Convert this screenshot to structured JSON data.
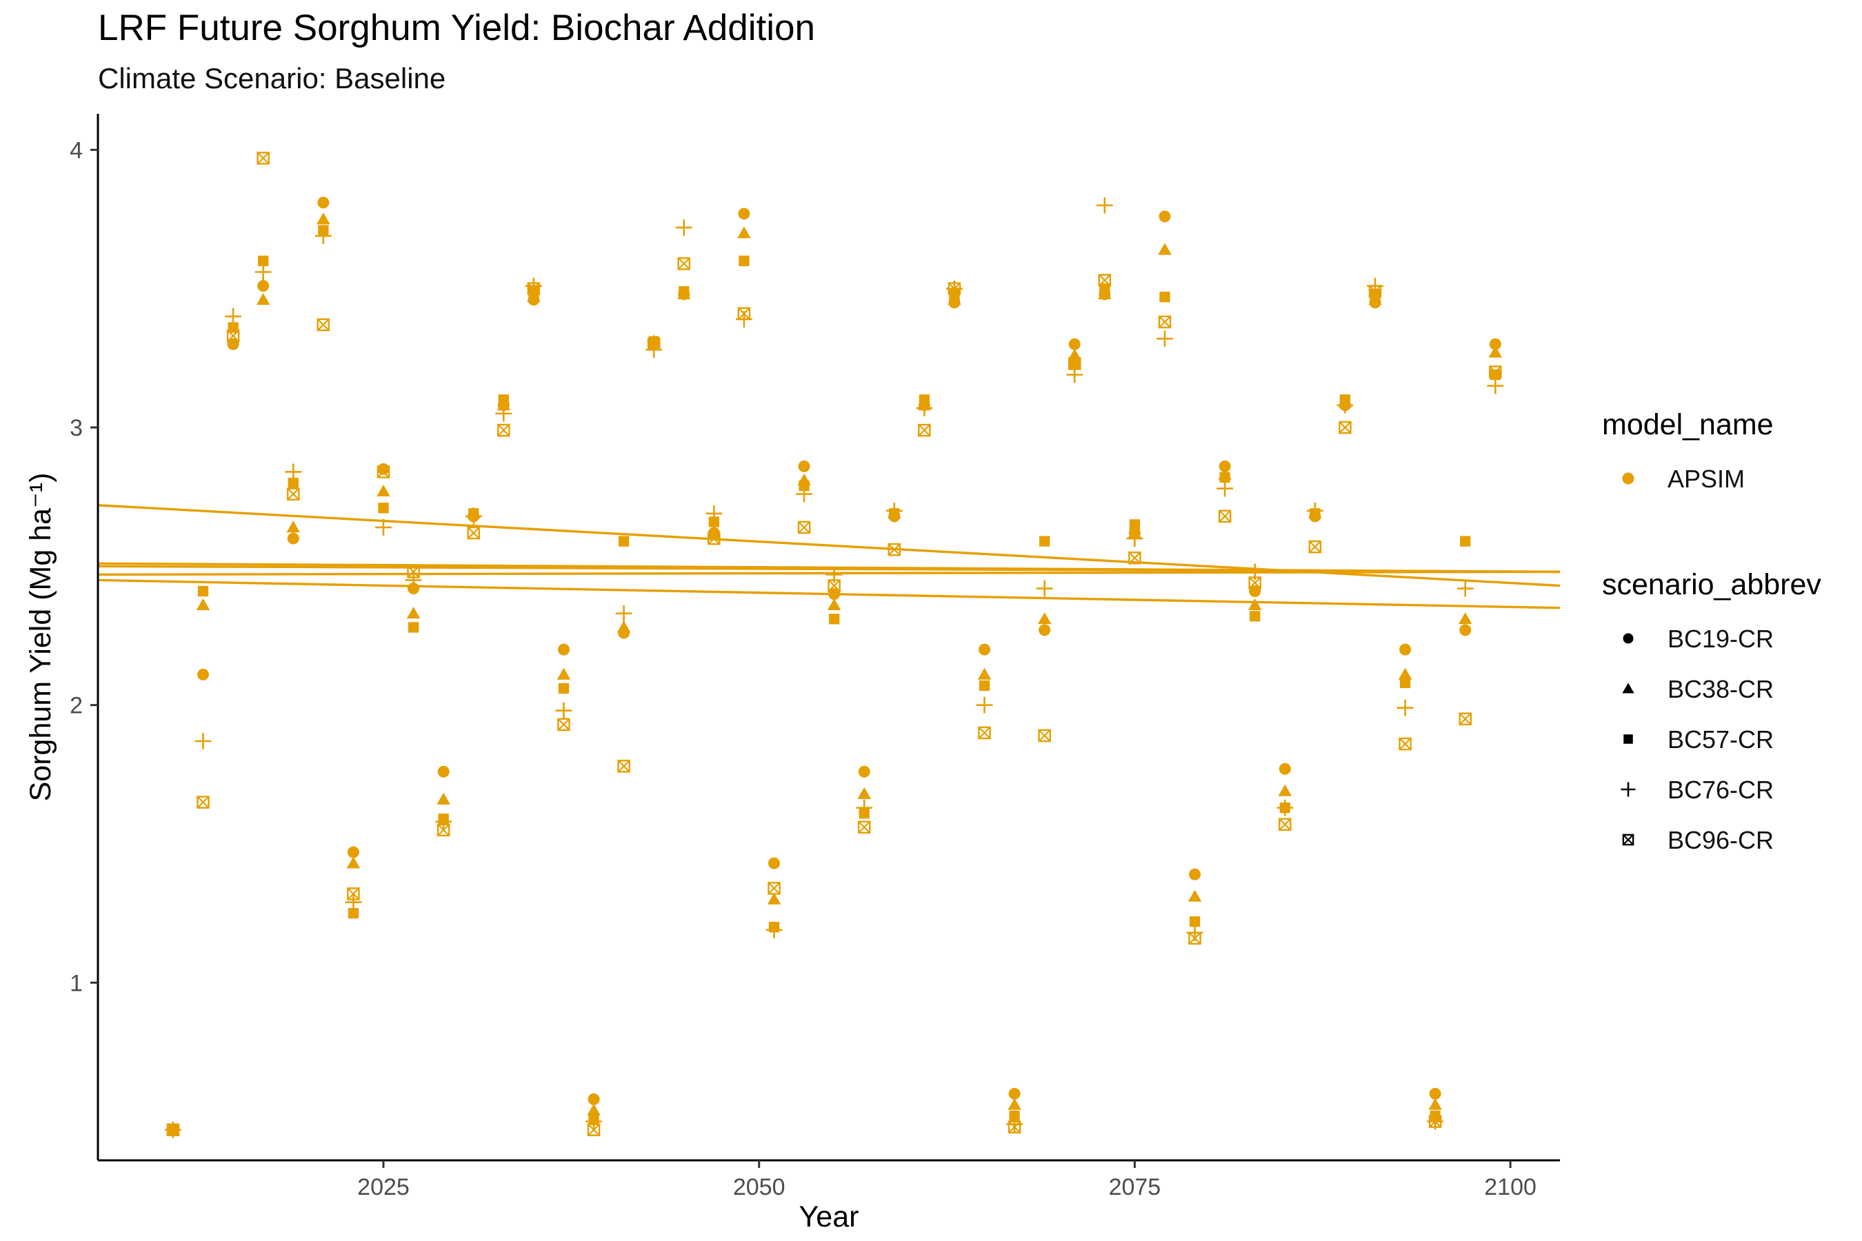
{
  "chart_data": {
    "type": "scatter",
    "title": "LRF Future Sorghum Yield: Biochar Addition",
    "subtitle": "Climate Scenario: Baseline",
    "xlabel": "Year",
    "ylabel": "Sorghum Yield (Mg ha⁻¹)",
    "xlim": [
      2006,
      2103.3
    ],
    "ylim": [
      0.36,
      4.13
    ],
    "x_ticks": [
      2025,
      2050,
      2075,
      2100
    ],
    "y_ticks": [
      1,
      2,
      3,
      4
    ],
    "grid": false,
    "legend_placement": "right",
    "color": "#E69F00",
    "legends": [
      {
        "title": "model_name",
        "entries": [
          {
            "label": "APSIM",
            "shape": "circle"
          }
        ]
      },
      {
        "title": "scenario_abbrev",
        "entries": [
          {
            "label": "BC19-CR",
            "shape": "circle"
          },
          {
            "label": "BC38-CR",
            "shape": "triangle"
          },
          {
            "label": "BC57-CR",
            "shape": "square"
          },
          {
            "label": "BC76-CR",
            "shape": "plus"
          },
          {
            "label": "BC96-CR",
            "shape": "square-x"
          }
        ]
      }
    ],
    "x": [
      2011,
      2013,
      2015,
      2017,
      2019,
      2021,
      2023,
      2025,
      2027,
      2029,
      2031,
      2033,
      2035,
      2037,
      2039,
      2041,
      2043,
      2045,
      2047,
      2049,
      2051,
      2053,
      2055,
      2057,
      2059,
      2061,
      2063,
      2065,
      2067,
      2069,
      2071,
      2073,
      2075,
      2077,
      2079,
      2081,
      2083,
      2085,
      2087,
      2089,
      2091,
      2093,
      2095,
      2097,
      2099
    ],
    "series": [
      {
        "name": "BC19-CR",
        "shape": "circle",
        "values": [
          0.47,
          2.11,
          3.3,
          3.51,
          2.6,
          3.81,
          1.47,
          2.85,
          2.42,
          1.76,
          2.68,
          3.08,
          3.46,
          2.2,
          0.58,
          2.26,
          3.3,
          3.48,
          2.62,
          3.77,
          1.43,
          2.86,
          2.4,
          1.76,
          2.68,
          3.08,
          3.45,
          2.2,
          0.6,
          2.27,
          3.3,
          3.48,
          2.62,
          3.76,
          1.39,
          2.86,
          2.41,
          1.77,
          2.68,
          3.08,
          3.45,
          2.2,
          0.6,
          2.27,
          3.3
        ],
        "trend": [
          2.51,
          2.48
        ]
      },
      {
        "name": "BC38-CR",
        "shape": "triangle",
        "values": [
          0.47,
          2.36,
          3.36,
          3.46,
          2.64,
          3.75,
          1.43,
          2.77,
          2.33,
          1.66,
          2.69,
          3.08,
          3.47,
          2.11,
          0.54,
          2.28,
          3.31,
          3.48,
          2.62,
          3.7,
          1.3,
          2.81,
          2.36,
          1.68,
          2.69,
          3.08,
          3.46,
          2.11,
          0.56,
          2.31,
          3.26,
          3.48,
          2.62,
          3.64,
          1.31,
          2.83,
          2.36,
          1.69,
          2.69,
          3.09,
          3.46,
          2.11,
          0.56,
          2.31,
          3.27
        ],
        "trend": [
          2.5,
          2.48
        ]
      },
      {
        "name": "BC57-CR",
        "shape": "square",
        "values": [
          0.47,
          2.41,
          3.36,
          3.6,
          2.8,
          3.71,
          1.25,
          2.71,
          2.28,
          1.59,
          2.69,
          3.1,
          3.49,
          2.06,
          0.51,
          2.59,
          3.31,
          3.49,
          2.66,
          3.6,
          1.2,
          2.79,
          2.31,
          1.61,
          2.69,
          3.1,
          3.48,
          2.07,
          0.52,
          2.59,
          3.23,
          3.5,
          2.65,
          3.47,
          1.22,
          2.82,
          2.32,
          1.63,
          2.69,
          3.1,
          3.48,
          2.08,
          0.52,
          2.59,
          3.19
        ],
        "trend": [
          2.47,
          2.48
        ]
      },
      {
        "name": "BC76-CR",
        "shape": "plus",
        "values": [
          0.47,
          1.87,
          3.4,
          3.56,
          2.84,
          3.69,
          1.29,
          2.64,
          2.45,
          1.58,
          2.68,
          3.05,
          3.51,
          1.98,
          0.5,
          2.33,
          3.28,
          3.72,
          2.69,
          3.39,
          1.19,
          2.76,
          2.47,
          1.63,
          2.7,
          3.07,
          3.5,
          2.0,
          0.49,
          2.42,
          3.19,
          3.8,
          2.6,
          3.32,
          1.18,
          2.78,
          2.48,
          1.63,
          2.7,
          3.08,
          3.51,
          1.99,
          0.5,
          2.42,
          3.15
        ],
        "trend": [
          2.45,
          2.35
        ]
      },
      {
        "name": "BC96-CR",
        "shape": "square-x",
        "values": [
          0.47,
          1.65,
          3.33,
          3.97,
          2.76,
          3.37,
          1.32,
          2.84,
          2.48,
          1.55,
          2.62,
          2.99,
          3.5,
          1.93,
          0.47,
          1.78,
          3.3,
          3.59,
          2.6,
          3.41,
          1.34,
          2.64,
          2.43,
          1.56,
          2.56,
          2.99,
          3.5,
          1.9,
          0.48,
          1.89,
          3.23,
          3.53,
          2.53,
          3.38,
          1.16,
          2.68,
          2.44,
          1.57,
          2.57,
          3.0,
          3.49,
          1.86,
          0.5,
          1.95,
          3.2
        ],
        "trend": [
          2.72,
          2.43
        ]
      }
    ]
  }
}
